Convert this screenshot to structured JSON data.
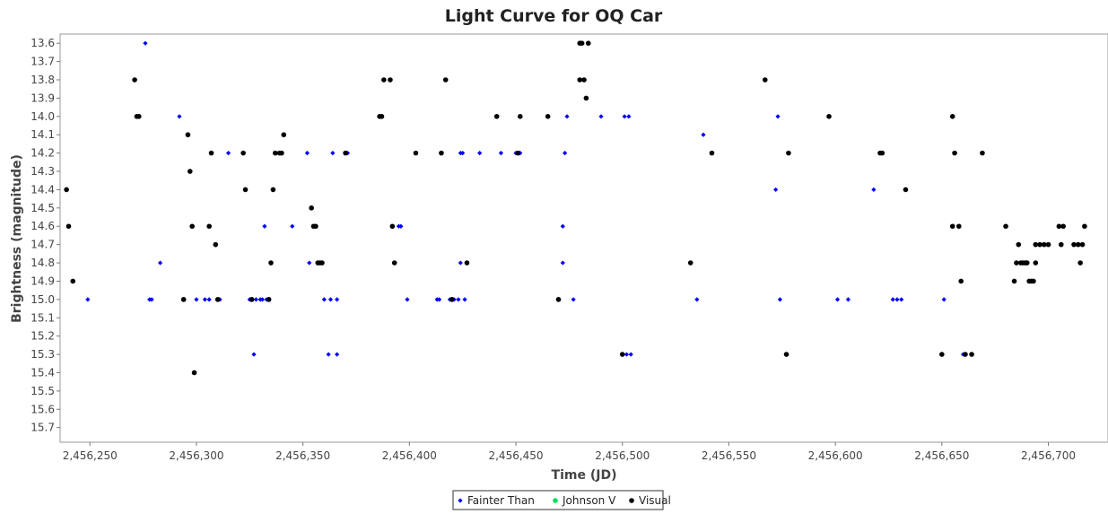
{
  "chart_data": {
    "type": "scatter",
    "title": "Light Curve for OQ Car",
    "xlabel": "Time (JD)",
    "ylabel": "Brightness (magnitude)",
    "xlim": [
      2456236,
      2456728
    ],
    "ylim": [
      13.55,
      15.78
    ],
    "y_inverted": true,
    "x_ticks": [
      2456250,
      2456300,
      2456350,
      2456400,
      2456450,
      2456500,
      2456550,
      2456600,
      2456650,
      2456700
    ],
    "x_tick_labels": [
      "2,456,250",
      "2,456,300",
      "2,456,350",
      "2,456,400",
      "2,456,450",
      "2,456,500",
      "2,456,550",
      "2,456,600",
      "2,456,650",
      "2,456,700"
    ],
    "y_ticks": [
      13.6,
      13.7,
      13.8,
      13.9,
      14.0,
      14.1,
      14.2,
      14.3,
      14.4,
      14.5,
      14.6,
      14.7,
      14.8,
      14.9,
      15.0,
      15.1,
      15.2,
      15.3,
      15.4,
      15.5,
      15.6,
      15.7
    ],
    "y_tick_labels": [
      "13.6",
      "13.7",
      "13.8",
      "13.9",
      "14.0",
      "14.1",
      "14.2",
      "14.3",
      "14.4",
      "14.5",
      "14.6",
      "14.7",
      "14.8",
      "14.9",
      "15.0",
      "15.1",
      "15.2",
      "15.3",
      "15.4",
      "15.5",
      "15.6",
      "15.7"
    ],
    "grid": false,
    "legend_position": "bottom-center",
    "series": [
      {
        "name": "Fainter Than",
        "color": "#0000ff",
        "marker": "diamond",
        "points": [
          [
            2456249,
            15.0
          ],
          [
            2456276,
            13.6
          ],
          [
            2456278,
            15.0
          ],
          [
            2456279,
            15.0
          ],
          [
            2456283,
            14.8
          ],
          [
            2456292,
            14.0
          ],
          [
            2456300,
            15.0
          ],
          [
            2456304,
            15.0
          ],
          [
            2456306,
            15.0
          ],
          [
            2456311,
            15.0
          ],
          [
            2456315,
            14.2
          ],
          [
            2456325,
            15.0
          ],
          [
            2456327,
            15.3
          ],
          [
            2456328,
            15.0
          ],
          [
            2456330,
            15.0
          ],
          [
            2456331,
            15.0
          ],
          [
            2456332,
            14.6
          ],
          [
            2456333,
            15.0
          ],
          [
            2456345,
            14.6
          ],
          [
            2456352,
            14.2
          ],
          [
            2456353,
            14.8
          ],
          [
            2456360,
            15.0
          ],
          [
            2456362,
            15.3
          ],
          [
            2456363,
            15.0
          ],
          [
            2456364,
            14.2
          ],
          [
            2456366,
            15.0
          ],
          [
            2456366,
            15.3
          ],
          [
            2456371,
            14.2
          ],
          [
            2456395,
            14.6
          ],
          [
            2456396,
            14.6
          ],
          [
            2456399,
            15.0
          ],
          [
            2456413,
            15.0
          ],
          [
            2456414,
            15.0
          ],
          [
            2456419,
            15.0
          ],
          [
            2456421,
            15.0
          ],
          [
            2456423,
            15.0
          ],
          [
            2456424,
            14.2
          ],
          [
            2456424,
            14.8
          ],
          [
            2456425,
            14.2
          ],
          [
            2456426,
            15.0
          ],
          [
            2456433,
            14.2
          ],
          [
            2456443,
            14.2
          ],
          [
            2456450,
            14.2
          ],
          [
            2456452,
            14.2
          ],
          [
            2456472,
            14.6
          ],
          [
            2456472,
            14.8
          ],
          [
            2456473,
            14.2
          ],
          [
            2456474,
            14.0
          ],
          [
            2456477,
            15.0
          ],
          [
            2456490,
            14.0
          ],
          [
            2456501,
            14.0
          ],
          [
            2456502,
            15.3
          ],
          [
            2456503,
            14.0
          ],
          [
            2456504,
            15.3
          ],
          [
            2456535,
            15.0
          ],
          [
            2456538,
            14.1
          ],
          [
            2456572,
            14.4
          ],
          [
            2456573,
            14.0
          ],
          [
            2456574,
            15.0
          ],
          [
            2456601,
            15.0
          ],
          [
            2456606,
            15.0
          ],
          [
            2456618,
            14.4
          ],
          [
            2456627,
            15.0
          ],
          [
            2456629,
            15.0
          ],
          [
            2456631,
            15.0
          ],
          [
            2456651,
            15.0
          ],
          [
            2456660,
            15.3
          ]
        ]
      },
      {
        "name": "Johnson V",
        "color": "#00e060",
        "marker": "circle",
        "points": []
      },
      {
        "name": "Visual",
        "color": "#000000",
        "marker": "circle",
        "points": [
          [
            2456239,
            14.4
          ],
          [
            2456240,
            14.6
          ],
          [
            2456242,
            14.9
          ],
          [
            2456271,
            13.8
          ],
          [
            2456272,
            14.0
          ],
          [
            2456273,
            14.0
          ],
          [
            2456294,
            15.0
          ],
          [
            2456296,
            14.1
          ],
          [
            2456297,
            14.3
          ],
          [
            2456298,
            14.6
          ],
          [
            2456299,
            15.4
          ],
          [
            2456306,
            14.6
          ],
          [
            2456307,
            14.2
          ],
          [
            2456309,
            14.7
          ],
          [
            2456310,
            15.0
          ],
          [
            2456322,
            14.2
          ],
          [
            2456323,
            14.4
          ],
          [
            2456326,
            15.0
          ],
          [
            2456334,
            15.0
          ],
          [
            2456335,
            14.8
          ],
          [
            2456336,
            14.4
          ],
          [
            2456337,
            14.2
          ],
          [
            2456339,
            14.2
          ],
          [
            2456340,
            14.2
          ],
          [
            2456341,
            14.1
          ],
          [
            2456354,
            14.5
          ],
          [
            2456355,
            14.6
          ],
          [
            2456356,
            14.6
          ],
          [
            2456357,
            14.8
          ],
          [
            2456358,
            14.8
          ],
          [
            2456359,
            14.8
          ],
          [
            2456370,
            14.2
          ],
          [
            2456386,
            14.0
          ],
          [
            2456387,
            14.0
          ],
          [
            2456388,
            13.8
          ],
          [
            2456391,
            13.8
          ],
          [
            2456392,
            14.6
          ],
          [
            2456393,
            14.8
          ],
          [
            2456403,
            14.2
          ],
          [
            2456415,
            14.2
          ],
          [
            2456417,
            13.8
          ],
          [
            2456420,
            15.0
          ],
          [
            2456427,
            14.8
          ],
          [
            2456441,
            14.0
          ],
          [
            2456451,
            14.2
          ],
          [
            2456452,
            14.0
          ],
          [
            2456465,
            14.0
          ],
          [
            2456470,
            15.0
          ],
          [
            2456480,
            13.6
          ],
          [
            2456480,
            13.8
          ],
          [
            2456481,
            13.6
          ],
          [
            2456482,
            13.8
          ],
          [
            2456483,
            13.9
          ],
          [
            2456484,
            13.6
          ],
          [
            2456500,
            15.3
          ],
          [
            2456532,
            14.8
          ],
          [
            2456542,
            14.2
          ],
          [
            2456567,
            13.8
          ],
          [
            2456577,
            15.3
          ],
          [
            2456578,
            14.2
          ],
          [
            2456597,
            14.0
          ],
          [
            2456621,
            14.2
          ],
          [
            2456622,
            14.2
          ],
          [
            2456633,
            14.4
          ],
          [
            2456650,
            15.3
          ],
          [
            2456655,
            14.6
          ],
          [
            2456655,
            14.0
          ],
          [
            2456656,
            14.2
          ],
          [
            2456658,
            14.6
          ],
          [
            2456659,
            14.9
          ],
          [
            2456661,
            15.3
          ],
          [
            2456664,
            15.3
          ],
          [
            2456669,
            14.2
          ],
          [
            2456680,
            14.6
          ],
          [
            2456684,
            14.9
          ],
          [
            2456685,
            14.8
          ],
          [
            2456686,
            14.7
          ],
          [
            2456687,
            14.8
          ],
          [
            2456688,
            14.8
          ],
          [
            2456689,
            14.8
          ],
          [
            2456690,
            14.8
          ],
          [
            2456691,
            14.9
          ],
          [
            2456692,
            14.9
          ],
          [
            2456693,
            14.9
          ],
          [
            2456694,
            14.8
          ],
          [
            2456694,
            14.7
          ],
          [
            2456696,
            14.7
          ],
          [
            2456698,
            14.7
          ],
          [
            2456700,
            14.7
          ],
          [
            2456705,
            14.6
          ],
          [
            2456706,
            14.7
          ],
          [
            2456707,
            14.6
          ],
          [
            2456712,
            14.7
          ],
          [
            2456714,
            14.7
          ],
          [
            2456715,
            14.8
          ],
          [
            2456716,
            14.7
          ],
          [
            2456717,
            14.6
          ]
        ]
      }
    ]
  }
}
